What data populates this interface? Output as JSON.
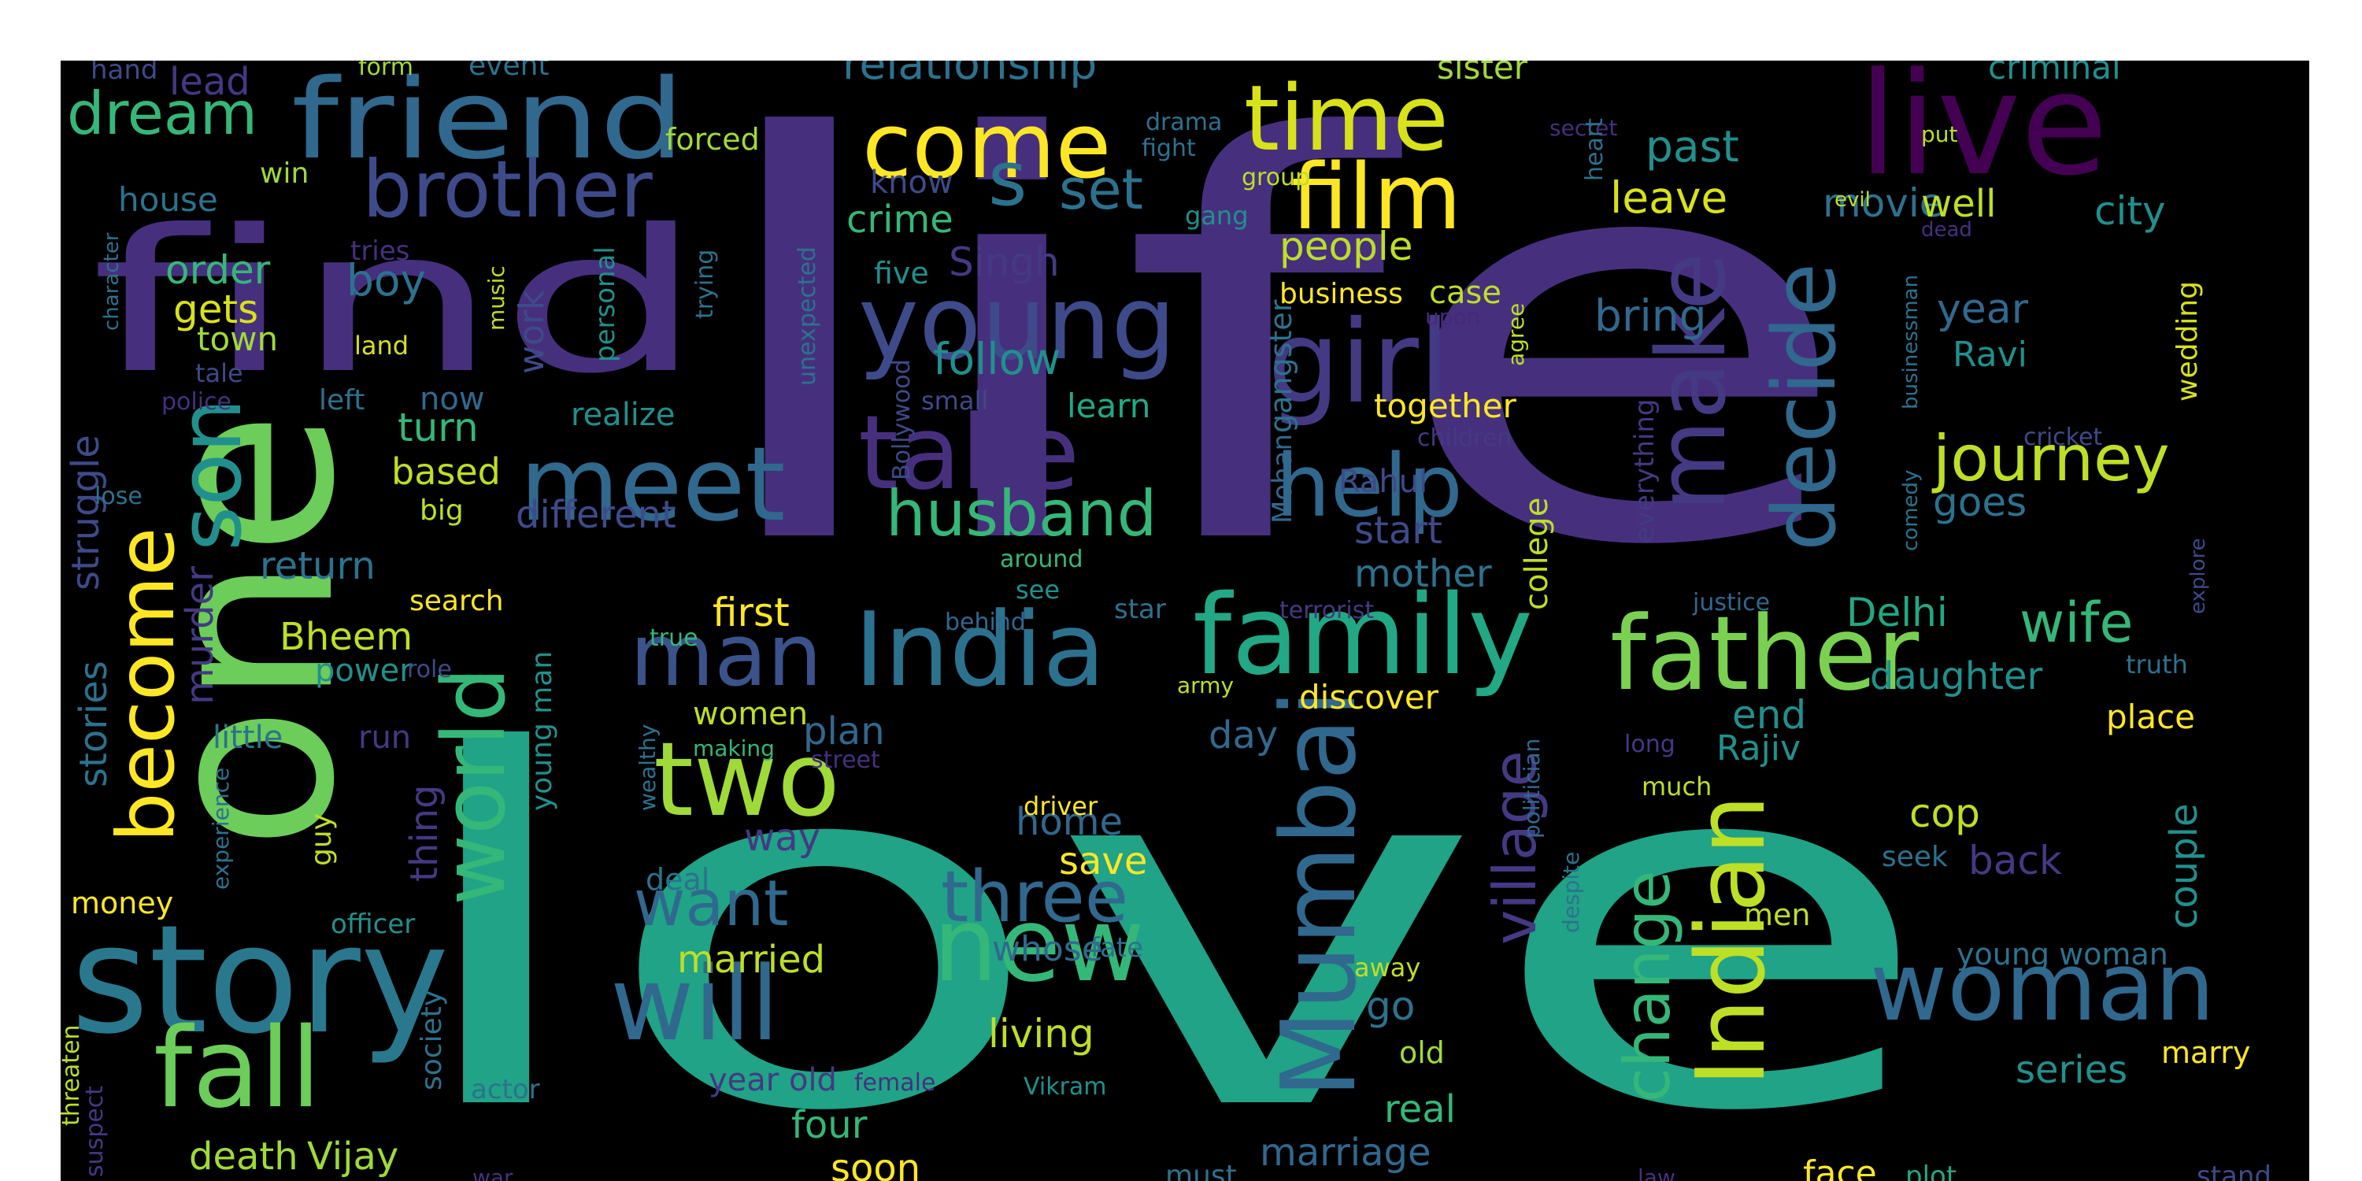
{
  "wordcloud": {
    "background": "#000000",
    "palette": {
      "purple": "#46307e",
      "purple_dark": "#440154",
      "blue": "#31688e",
      "teal": "#21908d",
      "green": "#35b779",
      "lime": "#6ccd5a",
      "yellow": "#bddf26",
      "yellow_bright": "#fde725"
    },
    "words": [
      {
        "text": "life",
        "color": "#46307e"
      },
      {
        "text": "love",
        "color": "#20a386"
      },
      {
        "text": "one",
        "color": "#6ccd5a"
      },
      {
        "text": "find",
        "color": "#46307e"
      },
      {
        "text": "friend",
        "color": "#31688e"
      },
      {
        "text": "brother",
        "color": "#3e4a89"
      },
      {
        "text": "come",
        "color": "#fde725"
      },
      {
        "text": "time",
        "color": "#d8e219"
      },
      {
        "text": "live",
        "color": "#440154"
      },
      {
        "text": "film",
        "color": "#fde725"
      },
      {
        "text": "young",
        "color": "#3e4a89"
      },
      {
        "text": "girl",
        "color": "#443983"
      },
      {
        "text": "take",
        "color": "#46307e"
      },
      {
        "text": "help",
        "color": "#31688e"
      },
      {
        "text": "make",
        "color": "#443983"
      },
      {
        "text": "decide",
        "color": "#31688e"
      },
      {
        "text": "meet",
        "color": "#31688e"
      },
      {
        "text": "son",
        "color": "#21908d"
      },
      {
        "text": "story",
        "color": "#2a788e"
      },
      {
        "text": "become",
        "color": "#fde725"
      },
      {
        "text": "world",
        "color": "#35b779"
      },
      {
        "text": "man",
        "color": "#3b528b"
      },
      {
        "text": "India",
        "color": "#2c728e"
      },
      {
        "text": "family",
        "color": "#22a884"
      },
      {
        "text": "father",
        "color": "#7ad151"
      },
      {
        "text": "two",
        "color": "#a0da39"
      },
      {
        "text": "new",
        "color": "#35b779"
      },
      {
        "text": "will",
        "color": "#31688e"
      },
      {
        "text": "fall",
        "color": "#6ccd5a"
      },
      {
        "text": "woman",
        "color": "#31688e"
      },
      {
        "text": "Indian",
        "color": "#bddf26"
      },
      {
        "text": "Mumbai",
        "color": "#31688e"
      },
      {
        "text": "journey",
        "color": "#bddf26"
      },
      {
        "text": "husband",
        "color": "#35b779"
      },
      {
        "text": "three",
        "color": "#31688e"
      },
      {
        "text": "dream",
        "color": "#35b779"
      },
      {
        "text": "s",
        "color": "#2c728e"
      },
      {
        "text": "set",
        "color": "#2c728e"
      },
      {
        "text": "want",
        "color": "#31688e"
      },
      {
        "text": "change",
        "color": "#35b779"
      },
      {
        "text": "village",
        "color": "#443983"
      },
      {
        "text": "wife",
        "color": "#35b779"
      },
      {
        "text": "relationship",
        "color": "#2c728e"
      },
      {
        "text": "crime",
        "color": "#35b779"
      },
      {
        "text": "follow",
        "color": "#21908d"
      },
      {
        "text": "people",
        "color": "#bddf26"
      },
      {
        "text": "bring",
        "color": "#31688e"
      },
      {
        "text": "past",
        "color": "#21908d"
      },
      {
        "text": "leave",
        "color": "#d8e219"
      },
      {
        "text": "movie",
        "color": "#2c728e"
      },
      {
        "text": "well",
        "color": "#bddf26"
      },
      {
        "text": "city",
        "color": "#21908d"
      },
      {
        "text": "criminal",
        "color": "#21908d"
      },
      {
        "text": "sister",
        "color": "#a0da39"
      },
      {
        "text": "order",
        "color": "#35b779"
      },
      {
        "text": "boy",
        "color": "#2c728e"
      },
      {
        "text": "gets",
        "color": "#d8e219"
      },
      {
        "text": "town",
        "color": "#a0da39"
      },
      {
        "text": "house",
        "color": "#2c728e"
      },
      {
        "text": "lead",
        "color": "#443983"
      },
      {
        "text": "hand",
        "color": "#3e4a89"
      },
      {
        "text": "form",
        "color": "#a0da39"
      },
      {
        "text": "event",
        "color": "#2c728e"
      },
      {
        "text": "forced",
        "color": "#a0da39"
      },
      {
        "text": "win",
        "color": "#a0da39"
      },
      {
        "text": "tries",
        "color": "#46307e"
      },
      {
        "text": "land",
        "color": "#d8e219"
      },
      {
        "text": "Singh",
        "color": "#443983"
      },
      {
        "text": "know",
        "color": "#3e4a89"
      },
      {
        "text": "five",
        "color": "#21908d"
      },
      {
        "text": "business",
        "color": "#fde725"
      },
      {
        "text": "case",
        "color": "#bddf26"
      },
      {
        "text": "upon",
        "color": "#482878"
      },
      {
        "text": "together",
        "color": "#fde725"
      },
      {
        "text": "learn",
        "color": "#22a884"
      },
      {
        "text": "small",
        "color": "#3e4a89"
      },
      {
        "text": "Rahul",
        "color": "#3e4a89"
      },
      {
        "text": "children",
        "color": "#443983"
      },
      {
        "text": "Mohan",
        "color": "#31688e"
      },
      {
        "text": "gangster",
        "color": "#2c728e"
      },
      {
        "text": "start",
        "color": "#3e4a89"
      },
      {
        "text": "mother",
        "color": "#2c728e"
      },
      {
        "text": "college",
        "color": "#bddf26"
      },
      {
        "text": "everything",
        "color": "#443983"
      },
      {
        "text": "year",
        "color": "#31688e"
      },
      {
        "text": "Ravi",
        "color": "#21908d"
      },
      {
        "text": "goes",
        "color": "#2c728e"
      },
      {
        "text": "cricket",
        "color": "#3e4a89"
      },
      {
        "text": "wedding",
        "color": "#d8e219"
      },
      {
        "text": "turn",
        "color": "#35b779"
      },
      {
        "text": "based",
        "color": "#bddf26"
      },
      {
        "text": "different",
        "color": "#3e4a89"
      },
      {
        "text": "now",
        "color": "#31688e"
      },
      {
        "text": "realize",
        "color": "#21908d"
      },
      {
        "text": "left",
        "color": "#2c728e"
      },
      {
        "text": "work",
        "color": "#3e4a89"
      },
      {
        "text": "big",
        "color": "#bddf26"
      },
      {
        "text": "struggle",
        "color": "#3e4a89"
      },
      {
        "text": "lose",
        "color": "#2c728e"
      },
      {
        "text": "return",
        "color": "#2c728e"
      },
      {
        "text": "search",
        "color": "#fde725"
      },
      {
        "text": "Bheem",
        "color": "#bddf26"
      },
      {
        "text": "power",
        "color": "#21908d"
      },
      {
        "text": "role",
        "color": "#3e4a89"
      },
      {
        "text": "first",
        "color": "#fde725"
      },
      {
        "text": "Delhi",
        "color": "#22a884"
      },
      {
        "text": "daughter",
        "color": "#21908d"
      },
      {
        "text": "discover",
        "color": "#fde725"
      },
      {
        "text": "army",
        "color": "#bddf26"
      },
      {
        "text": "star",
        "color": "#2c728e"
      },
      {
        "text": "terrorist",
        "color": "#443983"
      },
      {
        "text": "justice",
        "color": "#31688e"
      },
      {
        "text": "explore",
        "color": "#3e4a89"
      },
      {
        "text": "truth",
        "color": "#2c728e"
      },
      {
        "text": "place",
        "color": "#fde725"
      },
      {
        "text": "end",
        "color": "#21908d"
      },
      {
        "text": "Rajiv",
        "color": "#21908d"
      },
      {
        "text": "cop",
        "color": "#bddf26"
      },
      {
        "text": "back",
        "color": "#443983"
      },
      {
        "text": "couple",
        "color": "#21908d"
      },
      {
        "text": "seek",
        "color": "#2c728e"
      },
      {
        "text": "young woman",
        "color": "#2c728e"
      },
      {
        "text": "stories",
        "color": "#2c728e"
      },
      {
        "text": "murder",
        "color": "#443983"
      },
      {
        "text": "little",
        "color": "#2c728e"
      },
      {
        "text": "run",
        "color": "#443983"
      },
      {
        "text": "thing",
        "color": "#443983"
      },
      {
        "text": "young man",
        "color": "#21908d"
      },
      {
        "text": "women",
        "color": "#bddf26"
      },
      {
        "text": "plan",
        "color": "#31688e"
      },
      {
        "text": "day",
        "color": "#31688e"
      },
      {
        "text": "home",
        "color": "#31688e"
      },
      {
        "text": "way",
        "color": "#443983"
      },
      {
        "text": "save",
        "color": "#fde725"
      },
      {
        "text": "street",
        "color": "#46307e"
      },
      {
        "text": "making",
        "color": "#35b779"
      },
      {
        "text": "money",
        "color": "#fde725"
      },
      {
        "text": "officer",
        "color": "#21908d"
      },
      {
        "text": "guy",
        "color": "#bddf26"
      },
      {
        "text": "experience",
        "color": "#2c728e"
      },
      {
        "text": "character",
        "color": "#2c728e"
      },
      {
        "text": "tale",
        "color": "#3e4a89"
      },
      {
        "text": "police",
        "color": "#46307e"
      },
      {
        "text": "music",
        "color": "#bddf26"
      },
      {
        "text": "personal",
        "color": "#21908d"
      },
      {
        "text": "trying",
        "color": "#2c728e"
      },
      {
        "text": "unexpected",
        "color": "#2c728e"
      },
      {
        "text": "Bollywood",
        "color": "#3e4a89"
      },
      {
        "text": "around",
        "color": "#35b779"
      },
      {
        "text": "see",
        "color": "#21908d"
      },
      {
        "text": "true",
        "color": "#35b779"
      },
      {
        "text": "behind",
        "color": "#31688e"
      },
      {
        "text": "deal",
        "color": "#2c728e"
      },
      {
        "text": "married",
        "color": "#bddf26"
      },
      {
        "text": "whose",
        "color": "#31688e"
      },
      {
        "text": "fate",
        "color": "#2c728e"
      },
      {
        "text": "go",
        "color": "#2c728e"
      },
      {
        "text": "living",
        "color": "#bddf26"
      },
      {
        "text": "away",
        "color": "#bddf26"
      },
      {
        "text": "old",
        "color": "#a0da39"
      },
      {
        "text": "year old",
        "color": "#443983"
      },
      {
        "text": "female",
        "color": "#46307e"
      },
      {
        "text": "Vikram",
        "color": "#21908d"
      },
      {
        "text": "four",
        "color": "#35b779"
      },
      {
        "text": "real",
        "color": "#35b779"
      },
      {
        "text": "marriage",
        "color": "#31688e"
      },
      {
        "text": "death",
        "color": "#a0da39"
      },
      {
        "text": "Vijay",
        "color": "#a0da39"
      },
      {
        "text": "soon",
        "color": "#fde725"
      },
      {
        "text": "must",
        "color": "#2c728e"
      },
      {
        "text": "war",
        "color": "#46307e"
      },
      {
        "text": "law",
        "color": "#46307e"
      },
      {
        "text": "face",
        "color": "#fde725"
      },
      {
        "text": "plot",
        "color": "#22a884"
      },
      {
        "text": "stand",
        "color": "#3e4a89"
      },
      {
        "text": "series",
        "color": "#21908d"
      },
      {
        "text": "marry",
        "color": "#fde725"
      },
      {
        "text": "men",
        "color": "#bddf26"
      },
      {
        "text": "actor",
        "color": "#2c728e"
      },
      {
        "text": "society",
        "color": "#2c728e"
      },
      {
        "text": "threaten",
        "color": "#bddf26"
      },
      {
        "text": "suspect",
        "color": "#443983"
      },
      {
        "text": "wealthy",
        "color": "#2c728e"
      },
      {
        "text": "politician",
        "color": "#31688e"
      },
      {
        "text": "despite",
        "color": "#2c728e"
      },
      {
        "text": "much",
        "color": "#bddf26"
      },
      {
        "text": "long",
        "color": "#443983"
      },
      {
        "text": "driver",
        "color": "#fde725"
      },
      {
        "text": "drama",
        "color": "#2c728e"
      },
      {
        "text": "fight",
        "color": "#2c728e"
      },
      {
        "text": "group",
        "color": "#bddf26"
      },
      {
        "text": "gang",
        "color": "#21908d"
      },
      {
        "text": "secret",
        "color": "#46307e"
      },
      {
        "text": "evil",
        "color": "#bddf26"
      },
      {
        "text": "heart",
        "color": "#2c728e"
      },
      {
        "text": "put",
        "color": "#bddf26"
      },
      {
        "text": "dead",
        "color": "#46307e"
      },
      {
        "text": "businessman",
        "color": "#2c728e"
      },
      {
        "text": "agree",
        "color": "#bddf26"
      },
      {
        "text": "comedy",
        "color": "#2c728e"
      }
    ]
  }
}
